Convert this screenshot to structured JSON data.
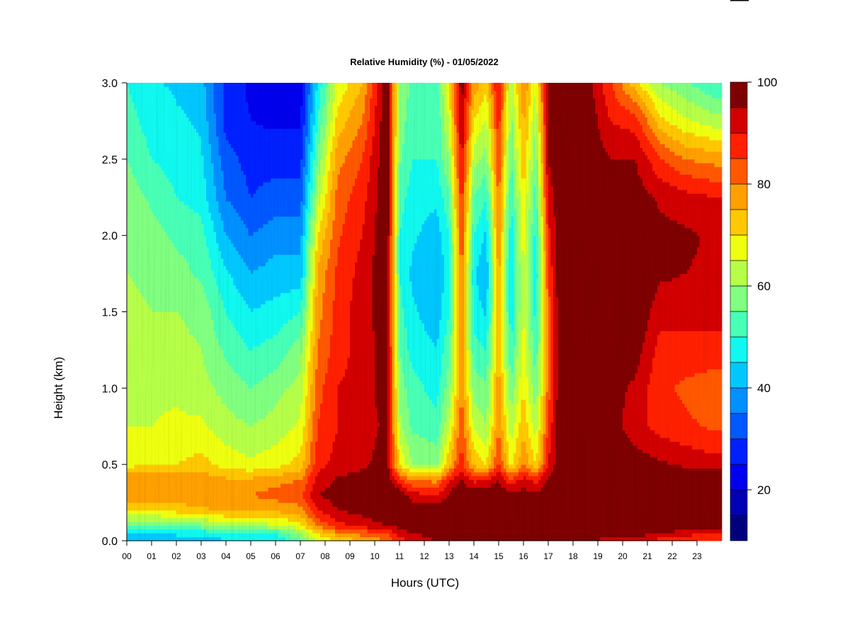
{
  "chart_data": {
    "type": "heatmap",
    "title": "Relative Humidity (%) - 01/05/2022",
    "xlabel": "Hours (UTC)",
    "ylabel": "Height (km)",
    "x_ticks": [
      "00",
      "01",
      "02",
      "03",
      "04",
      "05",
      "06",
      "07",
      "08",
      "09",
      "10",
      "11",
      "12",
      "13",
      "14",
      "15",
      "16",
      "17",
      "18",
      "19",
      "20",
      "21",
      "22",
      "23"
    ],
    "xlim": [
      0,
      24
    ],
    "ylim": [
      0.0,
      3.0
    ],
    "y_ticks": [
      "0.0",
      "0.5",
      "1.0",
      "1.5",
      "2.0",
      "2.5",
      "3.0"
    ],
    "colorbar": {
      "range": [
        10,
        100
      ],
      "ticks": [
        "20",
        "40",
        "60",
        "80",
        "100"
      ],
      "levels": 18,
      "colors": [
        "#00007f",
        "#0000b4",
        "#0000ee",
        "#0020ff",
        "#0058ff",
        "#0090ff",
        "#00c8ff",
        "#10f8ef",
        "#48ffb6",
        "#80ff80",
        "#b6ff48",
        "#efff10",
        "#ffc800",
        "#ffa000",
        "#ff5800",
        "#ff2000",
        "#d20000",
        "#7f0000"
      ]
    },
    "grid": false,
    "heights_km": [
      0.0,
      0.05,
      0.1,
      0.2,
      0.3,
      0.4,
      0.5,
      0.75,
      1.0,
      1.25,
      1.5,
      1.75,
      2.0,
      2.25,
      2.5,
      2.75,
      3.0
    ],
    "times_h": [
      0.0,
      1.0,
      2.0,
      3.0,
      4.0,
      5.0,
      6.0,
      7.0,
      7.7,
      8.5,
      9.5,
      10.5,
      11.0,
      11.5,
      12.5,
      13.0,
      13.5,
      14.0,
      14.5,
      15.0,
      15.5,
      16.0,
      16.5,
      17.0,
      17.5,
      18.5,
      19.5,
      20.5,
      21.5,
      22.5,
      23.8
    ],
    "rh_percent": [
      [
        40,
        45,
        55,
        70,
        78,
        80,
        68,
        65,
        65,
        64,
        62,
        60,
        60,
        58,
        55,
        52,
        50
      ],
      [
        40,
        45,
        55,
        70,
        78,
        80,
        70,
        65,
        64,
        62,
        60,
        58,
        57,
        54,
        50,
        48,
        46
      ],
      [
        42,
        46,
        56,
        72,
        78,
        78,
        70,
        66,
        64,
        62,
        60,
        57,
        54,
        50,
        48,
        46,
        44
      ],
      [
        42,
        46,
        58,
        74,
        80,
        78,
        72,
        66,
        62,
        60,
        58,
        54,
        52,
        48,
        46,
        44,
        42
      ],
      [
        44,
        50,
        62,
        75,
        80,
        76,
        68,
        62,
        58,
        54,
        50,
        46,
        40,
        35,
        32,
        28,
        28
      ],
      [
        44,
        50,
        62,
        75,
        80,
        76,
        66,
        60,
        55,
        50,
        45,
        40,
        35,
        30,
        28,
        25,
        24
      ],
      [
        45,
        50,
        64,
        76,
        82,
        78,
        68,
        62,
        58,
        52,
        47,
        42,
        38,
        32,
        28,
        24,
        22
      ],
      [
        55,
        60,
        68,
        78,
        84,
        80,
        72,
        66,
        62,
        58,
        50,
        42,
        38,
        32,
        28,
        24,
        22
      ],
      [
        65,
        70,
        80,
        90,
        95,
        92,
        88,
        85,
        83,
        80,
        78,
        76,
        70,
        62,
        56,
        50,
        46
      ],
      [
        70,
        78,
        88,
        95,
        97,
        96,
        92,
        90,
        90,
        88,
        87,
        86,
        84,
        82,
        78,
        72,
        66
      ],
      [
        75,
        82,
        92,
        97,
        99,
        97,
        94,
        93,
        92,
        92,
        93,
        92,
        90,
        88,
        85,
        80,
        75
      ],
      [
        80,
        85,
        95,
        99,
        100,
        99,
        97,
        96,
        98,
        98,
        98,
        100,
        100,
        100,
        100,
        100,
        100
      ],
      [
        88,
        92,
        97,
        100,
        100,
        86,
        70,
        62,
        58,
        55,
        52,
        50,
        50,
        52,
        56,
        58,
        60
      ],
      [
        90,
        95,
        99,
        100,
        92,
        80,
        60,
        54,
        52,
        48,
        46,
        44,
        46,
        48,
        50,
        52,
        54
      ],
      [
        95,
        98,
        100,
        100,
        90,
        78,
        58,
        52,
        48,
        45,
        42,
        40,
        42,
        46,
        50,
        50,
        52
      ],
      [
        100,
        100,
        100,
        100,
        96,
        90,
        74,
        64,
        58,
        54,
        50,
        48,
        50,
        54,
        60,
        66,
        70
      ],
      [
        100,
        100,
        100,
        100,
        100,
        95,
        88,
        84,
        80,
        78,
        80,
        82,
        85,
        88,
        92,
        95,
        98
      ],
      [
        100,
        100,
        100,
        100,
        100,
        88,
        74,
        64,
        58,
        52,
        48,
        46,
        50,
        55,
        62,
        70,
        78
      ],
      [
        100,
        100,
        100,
        100,
        100,
        90,
        70,
        60,
        56,
        50,
        44,
        40,
        44,
        50,
        58,
        64,
        72
      ],
      [
        100,
        100,
        100,
        100,
        100,
        95,
        86,
        80,
        78,
        76,
        76,
        78,
        80,
        82,
        85,
        88,
        92
      ],
      [
        100,
        100,
        100,
        100,
        96,
        86,
        68,
        62,
        56,
        50,
        46,
        44,
        46,
        50,
        54,
        58,
        62
      ],
      [
        100,
        100,
        100,
        100,
        98,
        92,
        80,
        74,
        70,
        68,
        66,
        66,
        68,
        70,
        74,
        76,
        80
      ],
      [
        100,
        100,
        100,
        100,
        96,
        88,
        70,
        62,
        56,
        52,
        48,
        46,
        48,
        52,
        56,
        60,
        66
      ],
      [
        100,
        100,
        100,
        100,
        100,
        96,
        90,
        86,
        82,
        80,
        82,
        85,
        88,
        92,
        95,
        96,
        98
      ],
      [
        100,
        100,
        100,
        100,
        100,
        100,
        100,
        100,
        100,
        100,
        100,
        100,
        100,
        100,
        100,
        100,
        100
      ],
      [
        95,
        100,
        100,
        100,
        100,
        100,
        100,
        100,
        100,
        100,
        100,
        100,
        100,
        100,
        100,
        100,
        98
      ],
      [
        92,
        100,
        100,
        100,
        100,
        100,
        100,
        98,
        97,
        96,
        96,
        97,
        98,
        97,
        95,
        90,
        86
      ],
      [
        90,
        98,
        100,
        100,
        100,
        100,
        98,
        92,
        94,
        98,
        100,
        100,
        100,
        98,
        95,
        88,
        72
      ],
      [
        88,
        95,
        100,
        100,
        100,
        100,
        96,
        88,
        86,
        88,
        92,
        96,
        97,
        94,
        86,
        72,
        60
      ],
      [
        86,
        92,
        100,
        100,
        100,
        100,
        94,
        86,
        84,
        88,
        92,
        95,
        96,
        92,
        80,
        66,
        56
      ],
      [
        84,
        90,
        98,
        100,
        100,
        100,
        92,
        84,
        82,
        88,
        92,
        94,
        94,
        90,
        78,
        62,
        50
      ]
    ]
  }
}
